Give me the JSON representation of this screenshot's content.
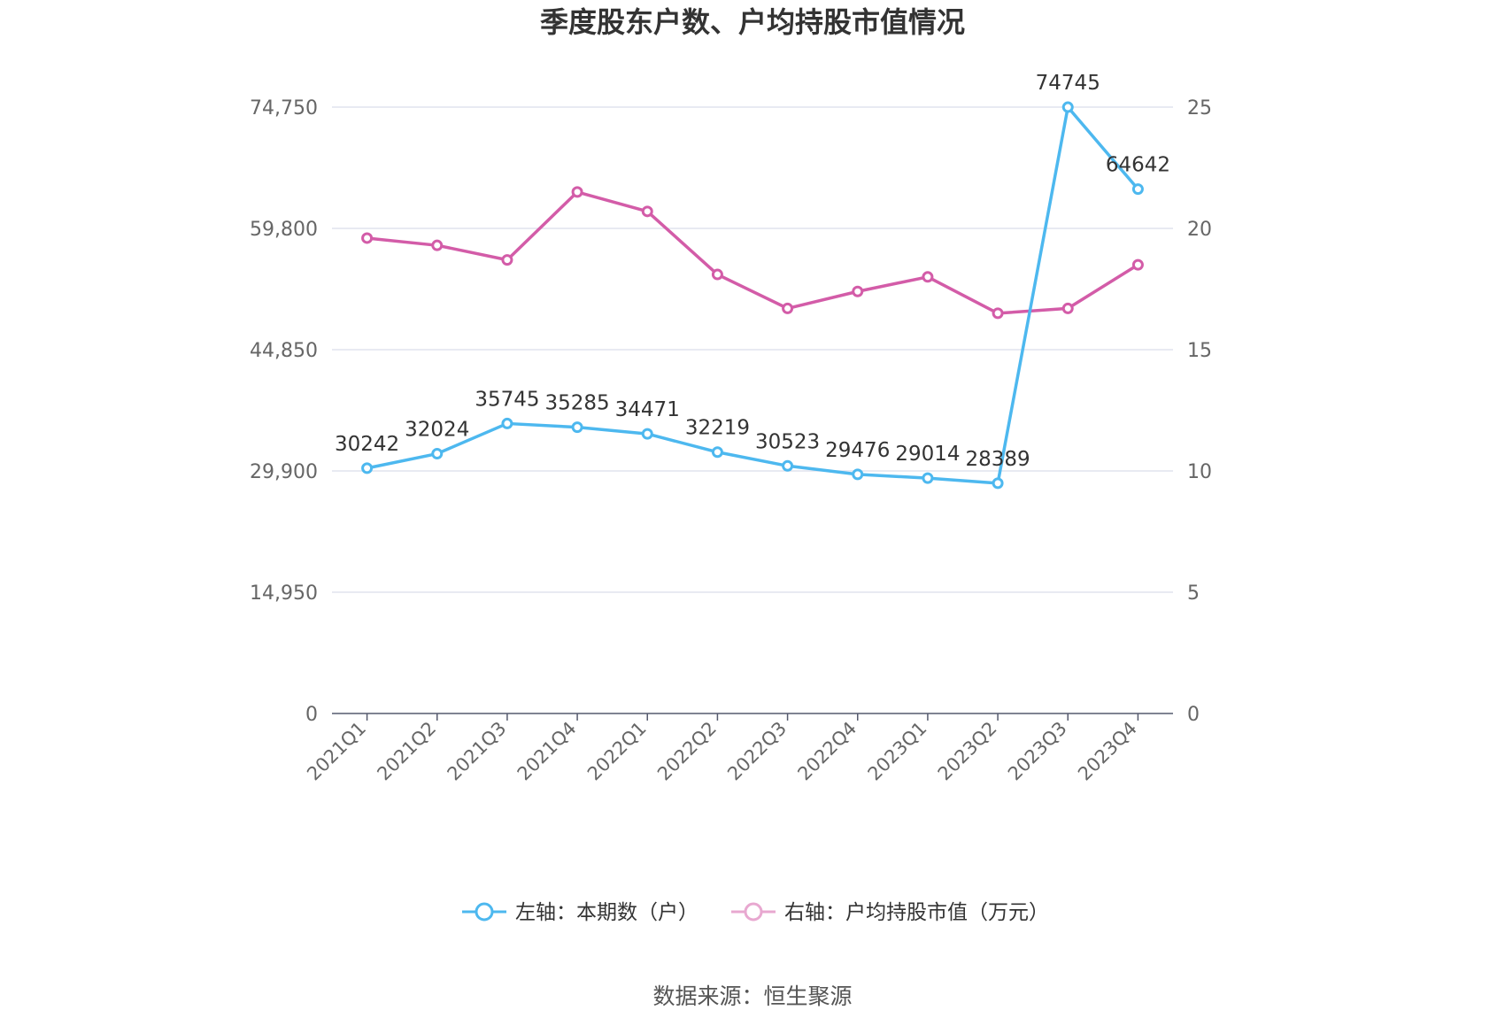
{
  "chart_data": {
    "type": "line",
    "title": "季度股东户数、户均持股市值情况",
    "categories": [
      "2021Q1",
      "2021Q2",
      "2021Q3",
      "2021Q4",
      "2022Q1",
      "2022Q2",
      "2022Q3",
      "2022Q4",
      "2023Q1",
      "2023Q2",
      "2023Q3",
      "2023Q4"
    ],
    "series": [
      {
        "name": "左轴：本期数（户）",
        "axis": "left",
        "color": "#4db8ef",
        "values": [
          30242,
          32024,
          35745,
          35285,
          34471,
          32219,
          30523,
          29476,
          29014,
          28389,
          74745,
          64642
        ],
        "data_labels": [
          "30242",
          "32024",
          "35745",
          "35285",
          "34471",
          "32219",
          "30523",
          "29476",
          "29014",
          "28389",
          "74745",
          "64642"
        ]
      },
      {
        "name": "右轴：户均持股市值（万元）",
        "axis": "right",
        "color": "#d35ca8",
        "values": [
          19.6,
          19.3,
          18.7,
          21.5,
          20.7,
          18.1,
          16.7,
          17.4,
          18.0,
          16.5,
          16.7,
          18.5
        ]
      }
    ],
    "left_axis": {
      "ylim": [
        0,
        74750
      ],
      "ticks": [
        "0",
        "14,950",
        "29,900",
        "44,850",
        "59,800",
        "74,750"
      ]
    },
    "right_axis": {
      "ylim": [
        0,
        25
      ],
      "ticks": [
        "0",
        "5",
        "10",
        "15",
        "20",
        "25"
      ]
    },
    "grid": true,
    "legend": "bottom-center"
  },
  "source_text": "数据来源：恒生聚源"
}
